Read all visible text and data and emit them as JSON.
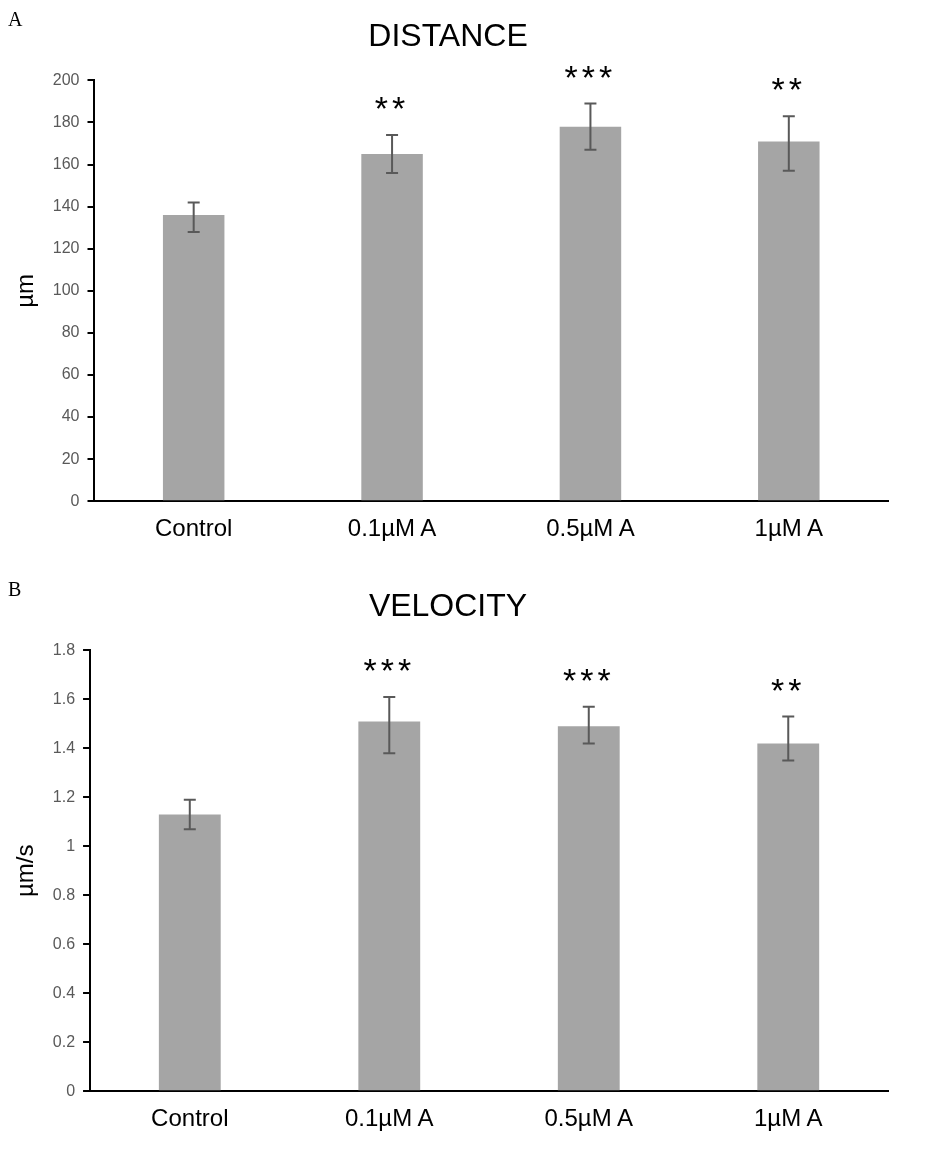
{
  "chart_data": [
    {
      "type": "bar",
      "title": "DISTANCE",
      "ylabel": "µm",
      "categories": [
        "Control",
        "0.1µM A",
        "0.5µM A",
        "1µM A"
      ],
      "values": [
        136,
        165,
        178,
        171
      ],
      "errors": [
        [
          128,
          142
        ],
        [
          156,
          174
        ],
        [
          167,
          189
        ],
        [
          157,
          183
        ]
      ],
      "color": "#a5a5a5",
      "ylim": [
        0,
        200
      ],
      "yticks": [
        0,
        20,
        40,
        60,
        80,
        100,
        120,
        140,
        160,
        180,
        200
      ],
      "grid": false,
      "legend": false,
      "annotations": [
        "A",
        "**",
        "***",
        "**"
      ]
    },
    {
      "type": "bar",
      "title": "VELOCITY",
      "ylabel": "µm/s",
      "categories": [
        "Control",
        "0.1µM A",
        "0.5µM A",
        "1µM A"
      ],
      "values": [
        1.13,
        1.51,
        1.49,
        1.42
      ],
      "errors": [
        [
          1.07,
          1.19
        ],
        [
          1.38,
          1.61
        ],
        [
          1.42,
          1.57
        ],
        [
          1.35,
          1.53
        ]
      ],
      "color": "#a5a5a5",
      "ylim": [
        0,
        1.8
      ],
      "yticks": [
        0,
        0.2,
        0.4,
        0.6,
        0.8,
        1,
        1.2,
        1.4,
        1.6,
        1.8
      ],
      "grid": false,
      "legend": false,
      "annotations": [
        "B",
        "***",
        "***",
        "**"
      ]
    }
  ]
}
